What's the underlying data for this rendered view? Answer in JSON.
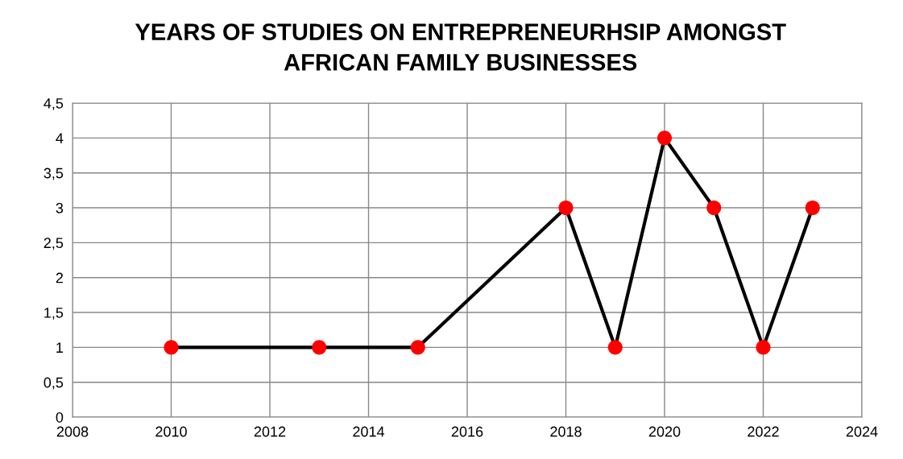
{
  "chart_data": {
    "type": "line",
    "title": "YEARS OF STUDIES ON ENTREPRENEURHSIP AMONGST\nAFRICAN FAMILY BUSINESSES",
    "x": [
      2010,
      2013,
      2015,
      2018,
      2019,
      2020,
      2021,
      2022,
      2023
    ],
    "series": [
      {
        "color": "#000000",
        "colors": [
          "#ff0000",
          "#ff0000",
          "#ff0000",
          "#ff0000",
          "#ff0000",
          "#ff0000",
          "#ff0000",
          "#ff0000",
          "#ff0000"
        ],
        "values": [
          1,
          1,
          1,
          3,
          1,
          4,
          3,
          1,
          3
        ]
      }
    ],
    "xlim": [
      2008,
      2024
    ],
    "xticks": [
      2008,
      2010,
      2012,
      2014,
      2016,
      2018,
      2020,
      2022,
      2024
    ],
    "ylim": [
      0,
      4.5
    ],
    "yticks": [
      0,
      {
        "value": 0.5,
        "label": "0,5"
      },
      1,
      {
        "value": 1.5,
        "label": "1,5"
      },
      2,
      {
        "value": 2.5,
        "label": "2,5"
      },
      3,
      {
        "value": 3.5,
        "label": "3,5"
      },
      4,
      {
        "value": 4.5,
        "label": "4,5"
      }
    ],
    "grid": true,
    "marker": "circle",
    "line_style": "solid",
    "legend": false
  }
}
